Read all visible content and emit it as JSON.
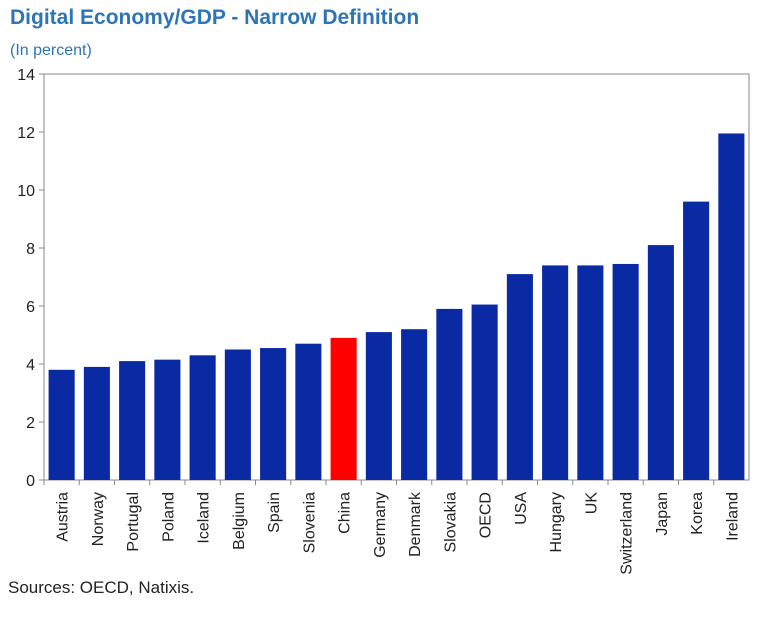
{
  "title": "Digital Economy/GDP - Narrow Definition",
  "subtitle": "(In percent)",
  "source": "Sources: OECD, Natixis.",
  "colors": {
    "bar": "#0a2aa3",
    "highlight": "#ff0000",
    "axis": "#555555"
  },
  "chart_data": {
    "type": "bar",
    "title": "Digital Economy/GDP - Narrow Definition",
    "subtitle": "(In percent)",
    "xlabel": "",
    "ylabel": "",
    "ylim": [
      0,
      14
    ],
    "yticks": [
      0,
      2,
      4,
      6,
      8,
      10,
      12,
      14
    ],
    "grid": false,
    "legend": "none",
    "categories": [
      "Austria",
      "Norway",
      "Portugal",
      "Poland",
      "Iceland",
      "Belgium",
      "Spain",
      "Slovenia",
      "China",
      "Germany",
      "Denmark",
      "Slovakia",
      "OECD",
      "USA",
      "Hungary",
      "UK",
      "Switzerland",
      "Japan",
      "Korea",
      "Ireland"
    ],
    "values": [
      3.8,
      3.9,
      4.1,
      4.15,
      4.3,
      4.5,
      4.55,
      4.7,
      4.9,
      5.1,
      5.2,
      5.9,
      6.05,
      7.1,
      7.4,
      7.4,
      7.45,
      8.1,
      9.6,
      11.95
    ],
    "highlight": "China"
  }
}
